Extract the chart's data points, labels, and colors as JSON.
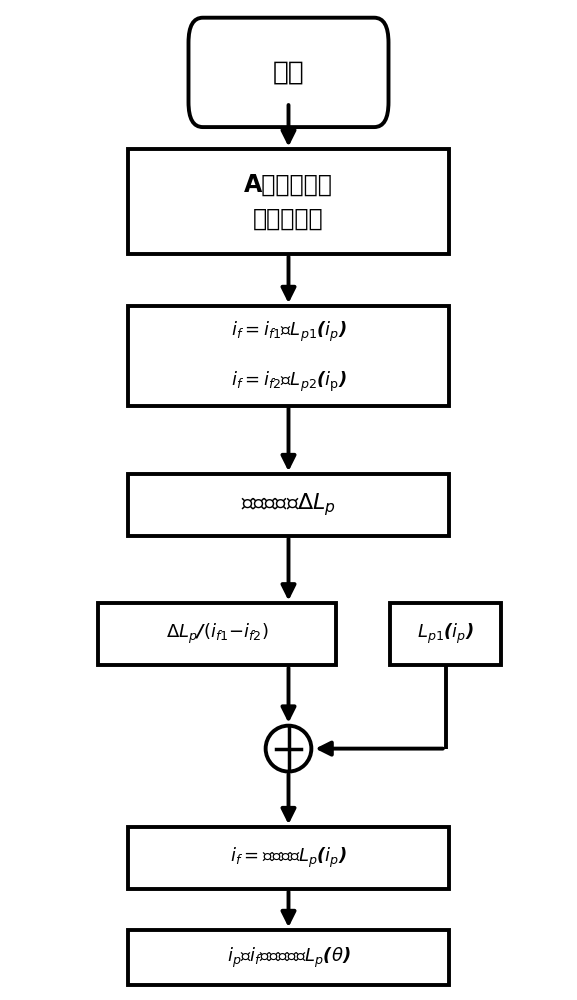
{
  "fig_width": 5.77,
  "fig_height": 10.0,
  "bg_color": "#ffffff",
  "lw": 2.8,
  "box_color": "#000000",
  "start_label": "开始",
  "box1_label": "A相定子齿与\n转子齿对齐",
  "box3_label": "横轴平移量ΔL_p",
  "box6_label_part1": "i_f=任意值的L_p(i_p)",
  "box7_label": "i_p、i_f为任意值的L_p(θ)"
}
